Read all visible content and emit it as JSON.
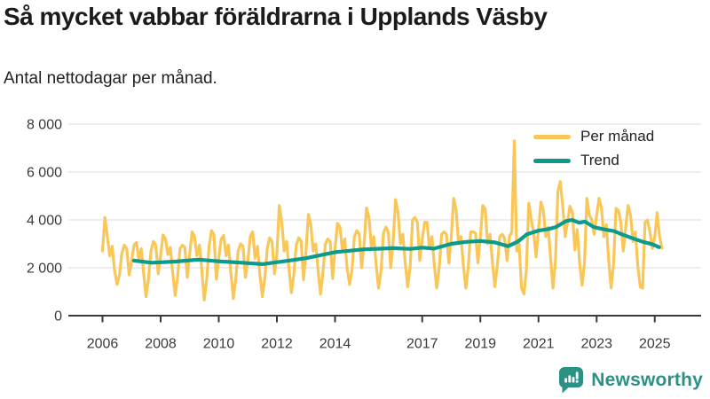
{
  "title": "Så mycket vabbar föräldrarna i Upplands Väsby",
  "subtitle": "Antal nettodagar per månad.",
  "footer": {
    "brand": "Newsworthy"
  },
  "colors": {
    "per_manad": "#F9C758",
    "trend": "#0A9B8C",
    "axis": "#3a3a3a",
    "grid": "#e2e2e2",
    "tick_text": "#3a3a3a",
    "brand": "#2B9185"
  },
  "chart_data": {
    "type": "line",
    "title": "Så mycket vabbar föräldrarna i Upplands Väsby",
    "subtitle": "Antal nettodagar per månad.",
    "ylabel": "Antal nettodagar per månad",
    "ylim": [
      0,
      8000
    ],
    "grid": "horizontal",
    "legend_position": "top-right",
    "legend": [
      "Per månad",
      "Trend"
    ],
    "y_ticks": [
      0,
      2000,
      4000,
      6000,
      8000
    ],
    "y_tick_labels": [
      "0",
      "2 000",
      "4 000",
      "6 000",
      "8 000"
    ],
    "x_tick_years": [
      2006,
      2008,
      2010,
      2012,
      2014,
      2017,
      2019,
      2021,
      2023,
      2025
    ],
    "series": [
      {
        "name": "Per månad",
        "frequency": "monthly",
        "start_year": 2006,
        "start_month": 1,
        "values": [
          2700,
          4100,
          3300,
          2500,
          2900,
          1900,
          1300,
          1700,
          2600,
          2950,
          2800,
          1700,
          2300,
          2950,
          3050,
          2350,
          2800,
          1750,
          800,
          1600,
          2700,
          3100,
          2950,
          1750,
          2500,
          3370,
          3200,
          2550,
          2850,
          1800,
          840,
          1600,
          2800,
          2950,
          2850,
          1600,
          2600,
          3500,
          3300,
          2500,
          2950,
          1900,
          650,
          1500,
          2900,
          3550,
          3400,
          1520,
          2400,
          3200,
          3350,
          2500,
          2950,
          1800,
          720,
          1500,
          2700,
          3000,
          2900,
          1600,
          2300,
          3300,
          3500,
          2400,
          2900,
          1700,
          800,
          1550,
          2800,
          3250,
          3100,
          1750,
          2600,
          4600,
          3900,
          2700,
          3100,
          1950,
          960,
          1750,
          2950,
          3250,
          3100,
          1500,
          2700,
          4230,
          3800,
          2700,
          3000,
          1900,
          900,
          1800,
          3000,
          3200,
          3100,
          1550,
          2800,
          3860,
          3700,
          2800,
          3200,
          2000,
          1300,
          1900,
          3300,
          3550,
          3400,
          2000,
          3000,
          4500,
          4100,
          2900,
          3300,
          2100,
          1150,
          1900,
          3450,
          3700,
          3500,
          2000,
          3100,
          4850,
          4300,
          3000,
          3400,
          2200,
          1210,
          2000,
          4000,
          4100,
          3900,
          2300,
          3200,
          3900,
          3900,
          2800,
          3300,
          2100,
          1150,
          2000,
          3400,
          3500,
          3400,
          2200,
          3300,
          4900,
          4400,
          3000,
          3300,
          2100,
          1150,
          2000,
          3500,
          3500,
          3450,
          2200,
          3300,
          4600,
          4450,
          3000,
          3400,
          2200,
          1210,
          2100,
          3300,
          3400,
          3250,
          2300,
          3300,
          3500,
          7300,
          2700,
          3000,
          1150,
          900,
          1900,
          4700,
          4000,
          3500,
          2450,
          3600,
          4750,
          4400,
          3300,
          3700,
          2400,
          1150,
          2300,
          5200,
          5600,
          4600,
          3300,
          3900,
          4570,
          4300,
          2750,
          3600,
          2200,
          1270,
          2200,
          4900,
          4200,
          4000,
          3400,
          4200,
          4900,
          4500,
          3300,
          3800,
          2300,
          1150,
          2200,
          4480,
          4400,
          3900,
          2700,
          3700,
          4600,
          4200,
          3100,
          3500,
          2100,
          1200,
          1150,
          3900,
          3990,
          3500,
          2800,
          3300,
          4300,
          3300,
          2820
        ]
      },
      {
        "name": "Trend",
        "frequency": "anchors",
        "anchors": [
          [
            2007.08,
            2300
          ],
          [
            2007.7,
            2210
          ],
          [
            2008.5,
            2260
          ],
          [
            2009.3,
            2340
          ],
          [
            2010,
            2270
          ],
          [
            2010.8,
            2210
          ],
          [
            2011.5,
            2150
          ],
          [
            2012.3,
            2280
          ],
          [
            2013,
            2400
          ],
          [
            2014,
            2650
          ],
          [
            2015,
            2770
          ],
          [
            2016,
            2820
          ],
          [
            2016.6,
            2790
          ],
          [
            2017,
            2840
          ],
          [
            2017.4,
            2800
          ],
          [
            2018,
            3000
          ],
          [
            2018.5,
            3080
          ],
          [
            2019,
            3120
          ],
          [
            2019.5,
            3060
          ],
          [
            2019.95,
            2900
          ],
          [
            2020.3,
            3100
          ],
          [
            2020.6,
            3400
          ],
          [
            2021,
            3550
          ],
          [
            2021.35,
            3620
          ],
          [
            2021.6,
            3700
          ],
          [
            2021.95,
            3950
          ],
          [
            2022.15,
            4000
          ],
          [
            2022.4,
            3880
          ],
          [
            2022.6,
            3930
          ],
          [
            2022.9,
            3700
          ],
          [
            2023.2,
            3620
          ],
          [
            2023.6,
            3530
          ],
          [
            2023.9,
            3380
          ],
          [
            2024.2,
            3250
          ],
          [
            2024.6,
            3080
          ],
          [
            2024.9,
            2990
          ],
          [
            2025.15,
            2860
          ]
        ]
      }
    ]
  }
}
